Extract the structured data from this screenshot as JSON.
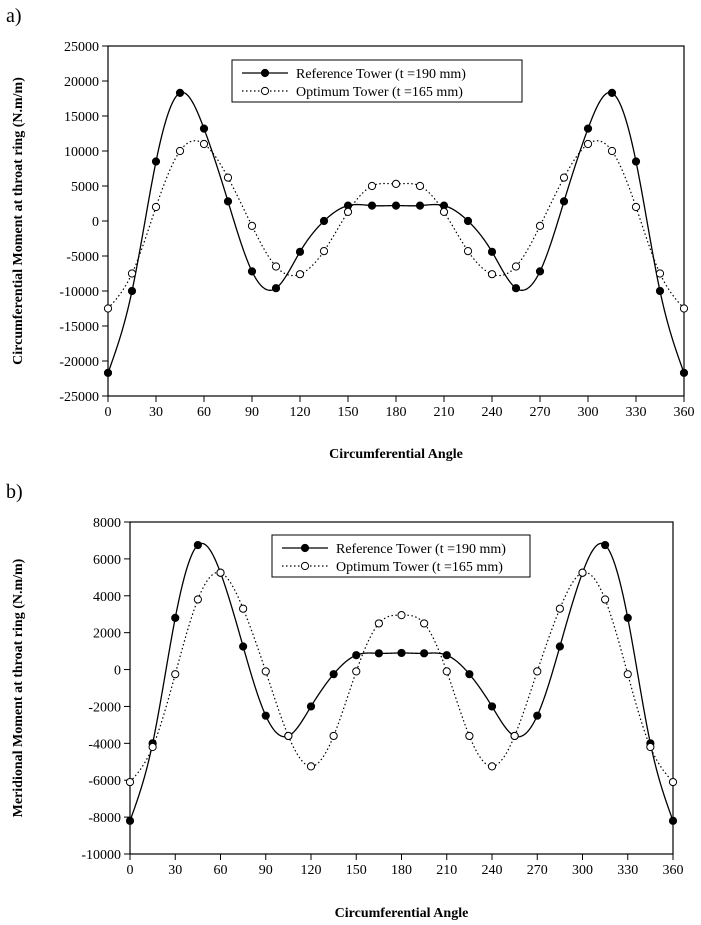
{
  "chart_data": [
    {
      "panel_label": "a)",
      "type": "line",
      "xlabel": "Circumferential Angle",
      "ylabel": "Circumferential Moment at throat ring (N.m/m)",
      "xlim": [
        0,
        360
      ],
      "ylim": [
        -25000,
        25000
      ],
      "xticks": [
        0,
        30,
        60,
        90,
        120,
        150,
        180,
        210,
        240,
        270,
        300,
        330,
        360
      ],
      "yticks": [
        -25000,
        -20000,
        -15000,
        -10000,
        -5000,
        0,
        5000,
        10000,
        15000,
        20000,
        25000
      ],
      "grid": false,
      "legend_position": "top-center",
      "series": [
        {
          "name": "Reference Tower (t =190 mm)",
          "line_style": "solid",
          "marker": "filled-circle",
          "x": [
            0,
            15,
            30,
            45,
            60,
            75,
            90,
            105,
            120,
            135,
            150,
            165,
            180,
            195,
            210,
            225,
            240,
            255,
            270,
            285,
            300,
            315,
            330,
            345,
            360
          ],
          "y": [
            -21700,
            -10000,
            8500,
            18300,
            13200,
            2800,
            -7200,
            -9600,
            -4400,
            0,
            2200,
            2200,
            2200,
            2200,
            2200,
            0,
            -4400,
            -9600,
            -7200,
            2800,
            13200,
            18300,
            8500,
            -10000,
            -21700
          ]
        },
        {
          "name": "Optimum Tower (t =165 mm)",
          "line_style": "dotted",
          "marker": "open-circle",
          "x": [
            0,
            15,
            30,
            45,
            60,
            75,
            90,
            105,
            120,
            135,
            150,
            165,
            180,
            195,
            210,
            225,
            240,
            255,
            270,
            285,
            300,
            315,
            330,
            345,
            360
          ],
          "y": [
            -12500,
            -7500,
            2000,
            10000,
            11000,
            6200,
            -700,
            -6500,
            -7600,
            -4300,
            1300,
            5000,
            5300,
            5000,
            1300,
            -4300,
            -7600,
            -6500,
            -700,
            6200,
            11000,
            10000,
            2000,
            -7500,
            -12500
          ]
        }
      ]
    },
    {
      "panel_label": "b)",
      "type": "line",
      "xlabel": "Circumferential Angle",
      "ylabel": "Meridional Moment at throat ring (N.m/m)",
      "xlim": [
        0,
        360
      ],
      "ylim": [
        -10000,
        8000
      ],
      "xticks": [
        0,
        30,
        60,
        90,
        120,
        150,
        180,
        210,
        240,
        270,
        300,
        330,
        360
      ],
      "yticks": [
        -10000,
        -8000,
        -6000,
        -4000,
        -2000,
        0,
        2000,
        4000,
        6000,
        8000
      ],
      "grid": false,
      "legend_position": "top-center",
      "series": [
        {
          "name": "Reference Tower (t =190 mm)",
          "line_style": "solid",
          "marker": "filled-circle",
          "x": [
            0,
            15,
            30,
            45,
            60,
            75,
            90,
            105,
            120,
            135,
            150,
            165,
            180,
            195,
            210,
            225,
            240,
            255,
            270,
            285,
            300,
            315,
            330,
            345,
            360
          ],
          "y": [
            -8200,
            -4000,
            2800,
            6750,
            5250,
            1250,
            -2500,
            -3600,
            -2000,
            -250,
            780,
            880,
            900,
            880,
            780,
            -250,
            -2000,
            -3600,
            -2500,
            1250,
            5250,
            6750,
            2800,
            -4000,
            -8200
          ]
        },
        {
          "name": "Optimum Tower (t =165 mm)",
          "line_style": "dotted",
          "marker": "open-circle",
          "x": [
            0,
            15,
            30,
            45,
            60,
            75,
            90,
            105,
            120,
            135,
            150,
            165,
            180,
            195,
            210,
            225,
            240,
            255,
            270,
            285,
            300,
            315,
            330,
            345,
            360
          ],
          "y": [
            -6100,
            -4200,
            -250,
            3800,
            5250,
            3300,
            -100,
            -3600,
            -5250,
            -3600,
            -100,
            2500,
            2950,
            2500,
            -100,
            -3600,
            -5250,
            -3600,
            -100,
            3300,
            5250,
            3800,
            -250,
            -4200,
            -6100
          ]
        }
      ]
    }
  ]
}
